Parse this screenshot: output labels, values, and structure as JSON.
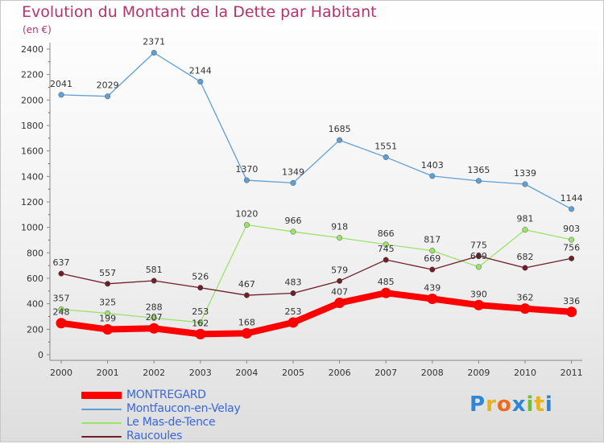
{
  "chart_data": {
    "type": "line",
    "title": "Evolution du Montant de la Dette par Habitant",
    "unit": "(en €)",
    "x": [
      "2000",
      "2001",
      "2002",
      "2003",
      "2004",
      "2005",
      "2006",
      "2007",
      "2008",
      "2009",
      "2010",
      "2011"
    ],
    "ylim": [
      0,
      2400
    ],
    "yticks": [
      0,
      200,
      400,
      600,
      800,
      1000,
      1200,
      1400,
      1600,
      1800,
      2000,
      2200,
      2400
    ],
    "grid": false,
    "legend_position": "bottom-left",
    "series": [
      {
        "name": "MONTREGARD",
        "color": "#ff0000",
        "values": [
          248,
          199,
          207,
          162,
          168,
          253,
          407,
          485,
          439,
          390,
          362,
          336
        ]
      },
      {
        "name": "Montfaucon-en-Velay",
        "color": "#5f9fd6",
        "values": [
          2041,
          2029,
          2371,
          2144,
          1370,
          1349,
          1685,
          1551,
          1403,
          1365,
          1339,
          1144
        ]
      },
      {
        "name": "Le Mas-de-Tence",
        "color": "#9be36b",
        "values": [
          357,
          325,
          288,
          253,
          1020,
          966,
          918,
          866,
          817,
          689,
          981,
          903
        ]
      },
      {
        "name": "Raucoules",
        "color": "#6e1e28",
        "values": [
          637,
          557,
          581,
          526,
          467,
          483,
          579,
          745,
          669,
          775,
          682,
          756
        ]
      }
    ]
  },
  "logo": {
    "letters": [
      "P",
      "r",
      "o",
      "x",
      "i",
      "t",
      "i"
    ]
  }
}
